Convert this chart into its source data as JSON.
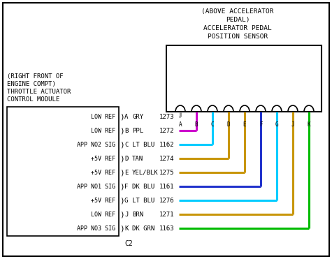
{
  "bg_color": "#ffffff",
  "title_top": "(ABOVE ACCELERATOR\n     PEDAL)\nACCELERATOR PEDAL\n  POSITION SENSOR",
  "title_left": "(RIGHT FRONT OF\nENGINE COMPT)\nTHROTTLE ACTUATOR\nCONTROL MODULE",
  "left_labels": [
    "LOW REF",
    "LOW REF",
    "APP NO2 SIG",
    "+5V REF",
    "+5V REF",
    "APP NO1 SIG",
    "+5V REF",
    "LOW REF",
    "APP NO3 SIG"
  ],
  "wires": [
    {
      "pin": "A",
      "color_name": "GRY",
      "circuit": "1273",
      "color_hex": "#999999"
    },
    {
      "pin": "B",
      "color_name": "PPL",
      "circuit": "1272",
      "color_hex": "#cc00cc"
    },
    {
      "pin": "C",
      "color_name": "LT BLU",
      "circuit": "1162",
      "color_hex": "#00ccff"
    },
    {
      "pin": "D",
      "color_name": "TAN",
      "circuit": "1274",
      "color_hex": "#c8960a"
    },
    {
      "pin": "E",
      "color_name": "YEL/BLK",
      "circuit": "1275",
      "color_hex": "#c8960a"
    },
    {
      "pin": "F",
      "color_name": "DK BLU",
      "circuit": "1161",
      "color_hex": "#2222bb"
    },
    {
      "pin": "G",
      "color_name": "LT BLU",
      "circuit": "1276",
      "color_hex": "#00ccff"
    },
    {
      "pin": "J",
      "color_name": "BRN",
      "circuit": "1271",
      "color_hex": "#c8960a"
    },
    {
      "pin": "K",
      "color_name": "DK GRN",
      "circuit": "1163",
      "color_hex": "#00bb00"
    }
  ],
  "connector_pins": [
    "A",
    "B",
    "C",
    "D",
    "E",
    "F",
    "G",
    "J",
    "K"
  ]
}
